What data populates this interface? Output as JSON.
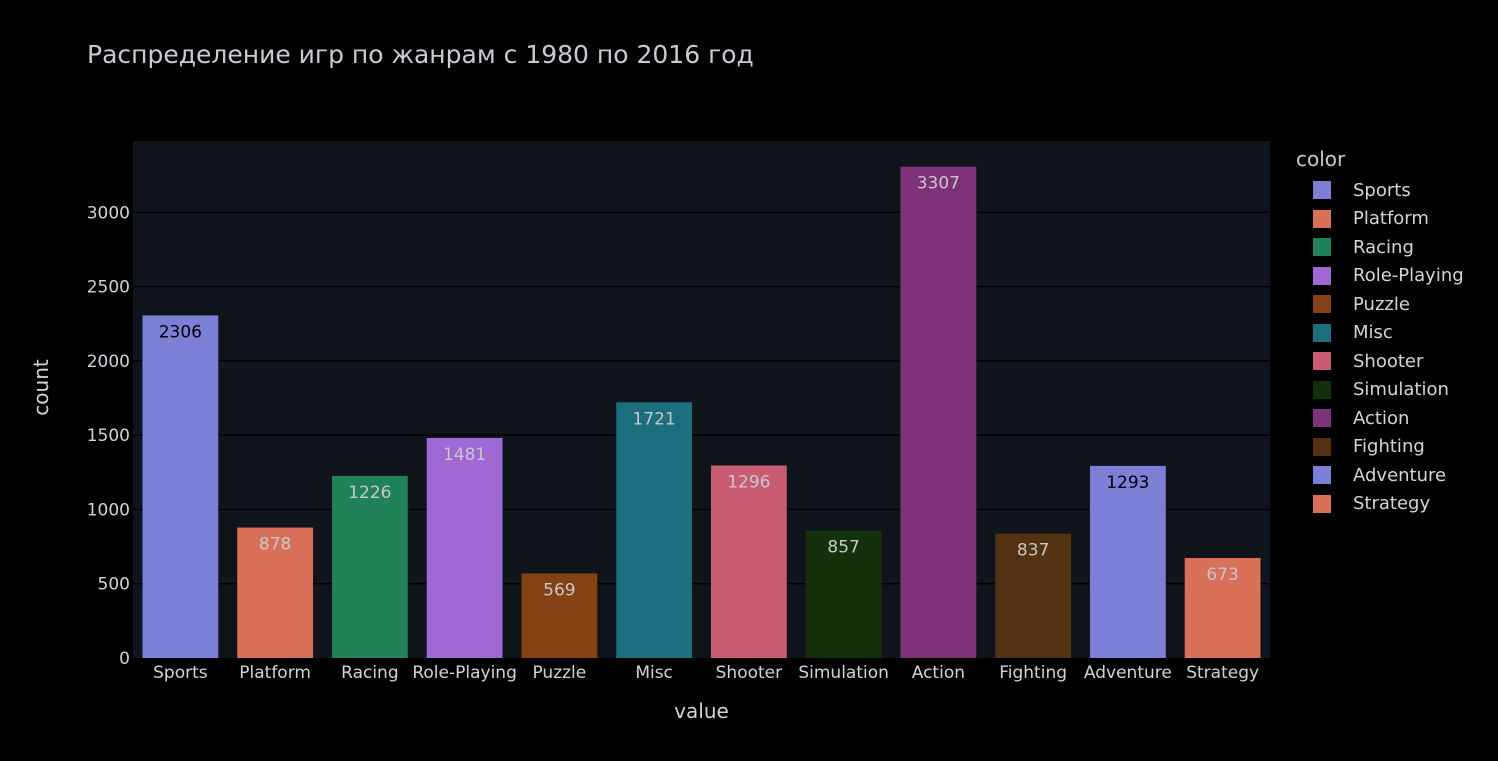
{
  "chart_data": {
    "type": "bar",
    "title": "Распределение игр по жанрам с 1980 по 2016 год",
    "xlabel": "value",
    "ylabel": "count",
    "ylim": [
      0,
      3480
    ],
    "yticks": [
      0,
      500,
      1000,
      1500,
      2000,
      2500,
      3000
    ],
    "categories": [
      "Sports",
      "Platform",
      "Racing",
      "Role-Playing",
      "Puzzle",
      "Misc",
      "Shooter",
      "Simulation",
      "Action",
      "Fighting",
      "Adventure",
      "Strategy"
    ],
    "values": [
      2306,
      878,
      1226,
      1481,
      569,
      1721,
      1296,
      857,
      3307,
      837,
      1293,
      673
    ],
    "colors": [
      "#7b7fd6",
      "#d9705a",
      "#1f8258",
      "#a068d4",
      "#844114",
      "#1b6e7e",
      "#c85b72",
      "#14310c",
      "#7e3279",
      "#543113",
      "#7b7fd6",
      "#d9705a"
    ],
    "label_colors": [
      "#000000",
      "#c8c8c8",
      "#c8c8c8",
      "#c8c8c8",
      "#c8c8c8",
      "#c8c8c8",
      "#c8c8c8",
      "#c8c8c8",
      "#c8c8c8",
      "#c8c8c8",
      "#000000",
      "#c8c8c8"
    ],
    "grid": true,
    "plot_background": "#10141b",
    "legend": {
      "title": "color",
      "position": "right",
      "entries": [
        "Sports",
        "Platform",
        "Racing",
        "Role-Playing",
        "Puzzle",
        "Misc",
        "Shooter",
        "Simulation",
        "Action",
        "Fighting",
        "Adventure",
        "Strategy"
      ]
    }
  }
}
